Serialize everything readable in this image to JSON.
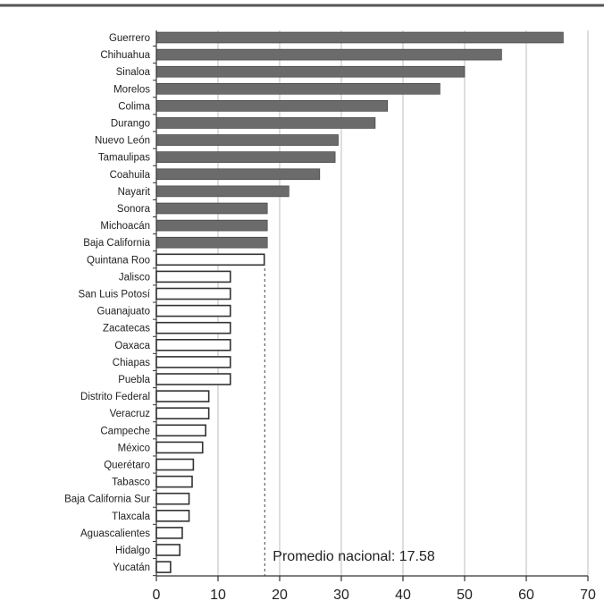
{
  "chart_data": {
    "type": "bar",
    "orientation": "horizontal",
    "categories": [
      "Guerrero",
      "Chihuahua",
      "Sinaloa",
      "Morelos",
      "Colima",
      "Durango",
      "Nuevo León",
      "Tamaulipas",
      "Coahuila",
      "Nayarit",
      "Sonora",
      "Michoacán",
      "Baja California",
      "Quintana Roo",
      "Jalisco",
      "San Luis Potosí",
      "Guanajuato",
      "Zacatecas",
      "Oaxaca",
      "Chiapas",
      "Puebla",
      "Distrito Federal",
      "Veracruz",
      "Campeche",
      "México",
      "Querétaro",
      "Tabasco",
      "Baja California Sur",
      "Tlaxcala",
      "Aguascalientes",
      "Hidalgo",
      "Yucatán"
    ],
    "values": [
      66,
      56,
      50,
      46,
      37.5,
      35.5,
      29.5,
      29,
      26.5,
      21.5,
      18,
      18,
      18,
      17.5,
      12,
      12,
      12,
      12,
      12,
      12,
      12,
      8.5,
      8.5,
      8,
      7.5,
      6,
      5.8,
      5.3,
      5.3,
      4.2,
      3.8,
      2.3
    ],
    "above_average_color": "#6b6b6b",
    "below_average_color": "#ffffff",
    "xlim": [
      0,
      70
    ],
    "xticks": [
      0,
      10,
      20,
      30,
      40,
      50,
      60,
      70
    ],
    "grid": "vertical",
    "average": {
      "value": 17.58,
      "label": "Promedio nacional: 17.58"
    },
    "title": "",
    "xlabel": "",
    "ylabel": ""
  }
}
